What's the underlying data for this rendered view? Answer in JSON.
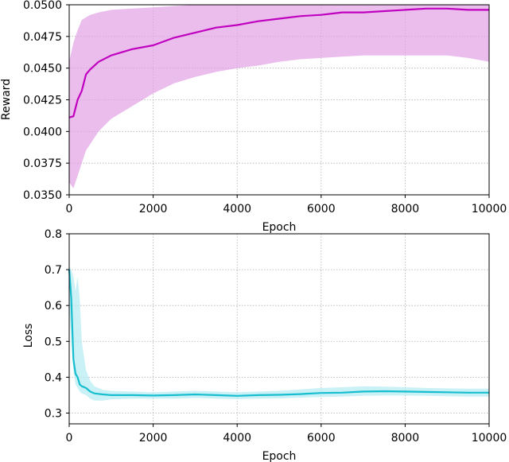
{
  "colors": {
    "reward_line": "#bf00bf",
    "reward_band": "#e3a1e6",
    "loss_line": "#17becf",
    "loss_band": "#b3ebf2",
    "grid": "#b0b0b0"
  },
  "chart_data": [
    {
      "type": "line",
      "xlabel": "Epoch",
      "ylabel": "Reward",
      "xlim": [
        0,
        10000
      ],
      "ylim": [
        0.035,
        0.05
      ],
      "xticks": [
        0,
        2000,
        4000,
        6000,
        8000,
        10000
      ],
      "xtick_labels": [
        "0",
        "2000",
        "4000",
        "6000",
        "8000",
        "10000"
      ],
      "yticks": [
        0.035,
        0.0375,
        0.04,
        0.0425,
        0.045,
        0.0475,
        0.05
      ],
      "ytick_labels": [
        "0.0350",
        "0.0375",
        "0.0400",
        "0.0425",
        "0.0450",
        "0.0475",
        "0.0500"
      ],
      "grid": true,
      "series": [
        {
          "role": "mean",
          "x": [
            0,
            100,
            200,
            300,
            400,
            500,
            700,
            1000,
            1500,
            2000,
            2500,
            3000,
            3500,
            4000,
            4500,
            5000,
            5500,
            6000,
            6500,
            7000,
            7500,
            8000,
            8500,
            9000,
            9500,
            10000
          ],
          "y": [
            0.0411,
            0.0412,
            0.0425,
            0.0432,
            0.0445,
            0.0449,
            0.0455,
            0.046,
            0.0465,
            0.0468,
            0.0474,
            0.0478,
            0.0482,
            0.0484,
            0.0487,
            0.0489,
            0.0491,
            0.0492,
            0.0494,
            0.0494,
            0.0495,
            0.0496,
            0.0497,
            0.0497,
            0.0496,
            0.0496
          ]
        },
        {
          "role": "band",
          "x": [
            0,
            100,
            200,
            300,
            400,
            500,
            700,
            1000,
            1500,
            2000,
            2500,
            3000,
            3500,
            4000,
            4500,
            5000,
            5500,
            6000,
            6500,
            7000,
            7500,
            8000,
            8500,
            9000,
            9500,
            10000
          ],
          "upper": [
            0.0455,
            0.047,
            0.048,
            0.0488,
            0.049,
            0.0492,
            0.0494,
            0.0496,
            0.0497,
            0.0498,
            0.0499,
            0.05,
            0.05,
            0.05,
            0.05,
            0.05,
            0.05,
            0.05,
            0.05,
            0.05,
            0.05,
            0.05,
            0.05,
            0.05,
            0.05,
            0.05
          ],
          "lower": [
            0.036,
            0.0355,
            0.0365,
            0.0375,
            0.0385,
            0.039,
            0.04,
            0.041,
            0.042,
            0.043,
            0.0438,
            0.0443,
            0.0447,
            0.045,
            0.0452,
            0.0455,
            0.0457,
            0.0458,
            0.0459,
            0.046,
            0.046,
            0.046,
            0.046,
            0.046,
            0.0458,
            0.0455
          ]
        }
      ]
    },
    {
      "type": "line",
      "xlabel": "Epoch",
      "ylabel": "Loss",
      "xlim": [
        0,
        10000
      ],
      "ylim": [
        0.27,
        0.8
      ],
      "xticks": [
        0,
        2000,
        4000,
        6000,
        8000,
        10000
      ],
      "xtick_labels": [
        "0",
        "2000",
        "4000",
        "6000",
        "8000",
        "10000"
      ],
      "yticks": [
        0.3,
        0.4,
        0.5,
        0.6,
        0.7,
        0.8
      ],
      "ytick_labels": [
        "0.3",
        "0.4",
        "0.5",
        "0.6",
        "0.7",
        "0.8"
      ],
      "grid": true,
      "series": [
        {
          "role": "mean",
          "x": [
            0,
            50,
            100,
            150,
            200,
            250,
            300,
            400,
            500,
            600,
            800,
            1000,
            1500,
            2000,
            2500,
            3000,
            3500,
            4000,
            4500,
            5000,
            5500,
            6000,
            6500,
            7000,
            7500,
            8000,
            8500,
            9000,
            9500,
            10000
          ],
          "y": [
            0.7,
            0.62,
            0.45,
            0.41,
            0.4,
            0.38,
            0.375,
            0.37,
            0.36,
            0.355,
            0.352,
            0.35,
            0.35,
            0.349,
            0.35,
            0.352,
            0.35,
            0.348,
            0.35,
            0.351,
            0.353,
            0.356,
            0.357,
            0.36,
            0.361,
            0.36,
            0.359,
            0.358,
            0.357,
            0.357
          ]
        },
        {
          "role": "band",
          "x": [
            0,
            50,
            100,
            150,
            200,
            250,
            300,
            400,
            500,
            600,
            800,
            1000,
            1500,
            2000,
            2500,
            3000,
            3500,
            4000,
            4500,
            5000,
            5500,
            6000,
            6500,
            7000,
            7500,
            8000,
            8500,
            9000,
            9500,
            10000
          ],
          "upper": [
            0.71,
            0.7,
            0.68,
            0.64,
            0.68,
            0.62,
            0.5,
            0.42,
            0.39,
            0.375,
            0.365,
            0.362,
            0.36,
            0.358,
            0.36,
            0.362,
            0.36,
            0.358,
            0.36,
            0.362,
            0.366,
            0.37,
            0.372,
            0.375,
            0.374,
            0.372,
            0.37,
            0.369,
            0.368,
            0.368
          ],
          "lower": [
            0.6,
            0.5,
            0.42,
            0.38,
            0.37,
            0.36,
            0.355,
            0.35,
            0.34,
            0.335,
            0.335,
            0.338,
            0.34,
            0.34,
            0.34,
            0.342,
            0.34,
            0.339,
            0.34,
            0.341,
            0.343,
            0.345,
            0.346,
            0.348,
            0.349,
            0.349,
            0.348,
            0.347,
            0.346,
            0.346
          ]
        }
      ]
    }
  ]
}
